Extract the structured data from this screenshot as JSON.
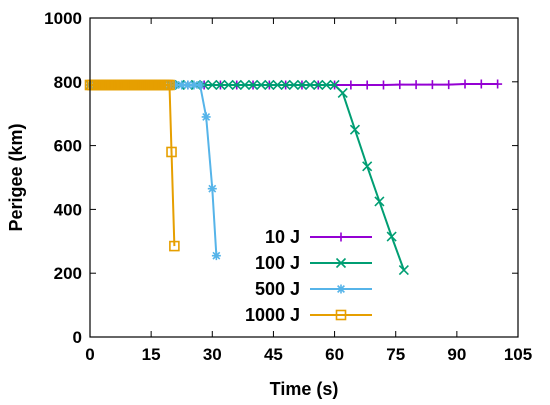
{
  "chart_data": {
    "type": "line",
    "xlabel": "Time (s)",
    "ylabel": "Perigee (km)",
    "xlim": [
      0,
      105
    ],
    "ylim": [
      0,
      1000
    ],
    "xticks": [
      0,
      15,
      30,
      45,
      60,
      75,
      90,
      105
    ],
    "yticks": [
      0,
      200,
      400,
      600,
      800,
      1000
    ],
    "grid": false,
    "legend_position": "bottom-center",
    "series": [
      {
        "name": "10 J",
        "color": "#9400d3",
        "marker": "plus",
        "x": [
          0,
          4,
          8,
          12,
          16,
          20,
          24,
          28,
          32,
          36,
          40,
          44,
          48,
          52,
          56,
          60,
          64,
          68,
          72,
          76,
          80,
          84,
          88,
          92,
          96,
          100
        ],
        "y": [
          790,
          790,
          790,
          790,
          790,
          790,
          790,
          790,
          790,
          790,
          790,
          790,
          790,
          790,
          790,
          790,
          790,
          790,
          790,
          791,
          791,
          791,
          791,
          793,
          793,
          793
        ]
      },
      {
        "name": "100 J",
        "color": "#009e73",
        "marker": "x",
        "x": [
          0,
          2,
          4,
          6,
          8,
          10,
          12,
          14,
          16,
          18,
          20,
          22,
          24,
          26,
          28,
          30,
          32,
          34,
          36,
          38,
          40,
          42,
          44,
          46,
          48,
          50,
          52,
          54,
          56,
          58,
          60,
          62,
          65,
          68,
          71,
          74,
          77
        ],
        "y": [
          790,
          790,
          790,
          790,
          790,
          790,
          790,
          790,
          790,
          790,
          790,
          790,
          790,
          790,
          790,
          790,
          790,
          790,
          790,
          790,
          790,
          790,
          790,
          790,
          790,
          790,
          790,
          790,
          790,
          790,
          790,
          765,
          650,
          535,
          425,
          315,
          210
        ]
      },
      {
        "name": "500 J",
        "color": "#56b4e9",
        "marker": "star",
        "x": [
          0,
          1.5,
          3,
          4.5,
          6,
          7.5,
          9,
          10.5,
          12,
          13.5,
          15,
          16.5,
          18,
          19.5,
          21,
          22.5,
          24,
          25.5,
          27,
          28.5,
          30,
          31
        ],
        "y": [
          790,
          790,
          790,
          790,
          790,
          790,
          790,
          790,
          790,
          790,
          790,
          790,
          790,
          790,
          790,
          790,
          790,
          790,
          790,
          690,
          465,
          255
        ]
      },
      {
        "name": "1000 J",
        "color": "#e69f00",
        "marker": "square",
        "x": [
          0,
          0.5,
          1,
          1.5,
          2,
          2.5,
          3,
          3.5,
          4,
          4.5,
          5,
          5.5,
          6,
          6.5,
          7,
          7.5,
          8,
          8.5,
          9,
          9.5,
          10,
          10.5,
          11,
          11.5,
          12,
          12.5,
          13,
          13.5,
          14,
          14.5,
          15,
          15.5,
          16,
          16.5,
          17,
          17.5,
          18,
          18.5,
          19,
          19.5,
          20,
          20.7
        ],
        "y": [
          790,
          790,
          790,
          790,
          790,
          790,
          790,
          790,
          790,
          790,
          790,
          790,
          790,
          790,
          790,
          790,
          790,
          790,
          790,
          790,
          790,
          790,
          790,
          790,
          790,
          790,
          790,
          790,
          790,
          790,
          790,
          790,
          790,
          790,
          790,
          790,
          790,
          790,
          790,
          790,
          580,
          285
        ]
      }
    ]
  }
}
